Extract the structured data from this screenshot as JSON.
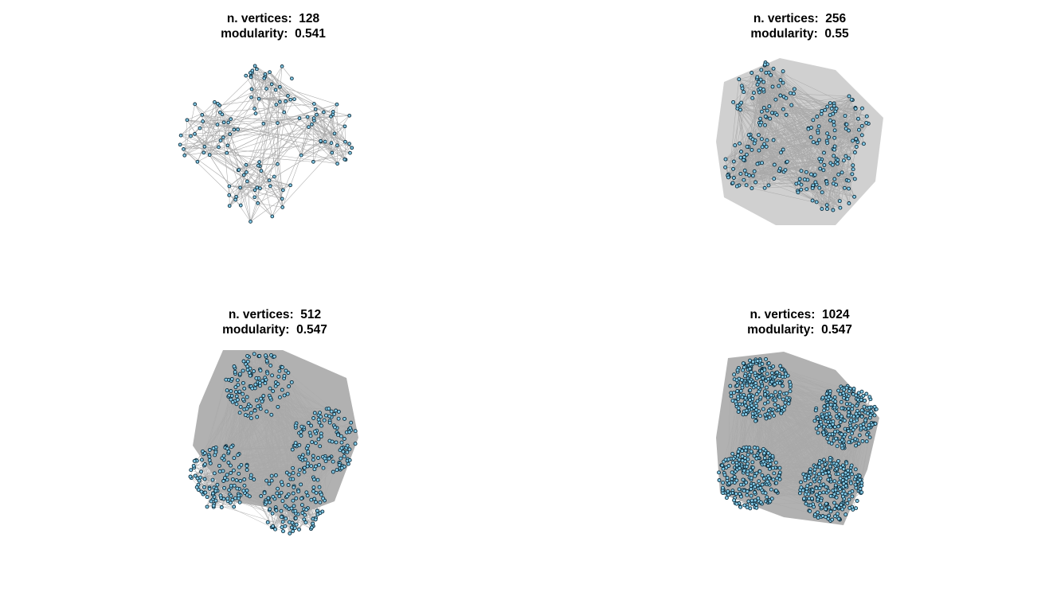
{
  "colors": {
    "edge": "#a9a9a9",
    "node_fill": "#87ceeb",
    "node_stroke": "#0b2a3a",
    "background": "#ffffff"
  },
  "panels": [
    {
      "vertices_label": "n. vertices:",
      "vertices": "128",
      "modularity_label": "modularity:",
      "modularity": "0.541",
      "n_vertices": 128,
      "n_clusters": 4
    },
    {
      "vertices_label": "n. vertices:",
      "vertices": "256",
      "modularity_label": "modularity:",
      "modularity": "0.55",
      "n_vertices": 256,
      "n_clusters": 4
    },
    {
      "vertices_label": "n. vertices:",
      "vertices": "512",
      "modularity_label": "modularity:",
      "modularity": "0.547",
      "n_vertices": 512,
      "n_clusters": 4
    },
    {
      "vertices_label": "n. vertices:",
      "vertices": "1024",
      "modularity_label": "modularity:",
      "modularity": "0.547",
      "n_vertices": 1024,
      "n_clusters": 4
    }
  ]
}
